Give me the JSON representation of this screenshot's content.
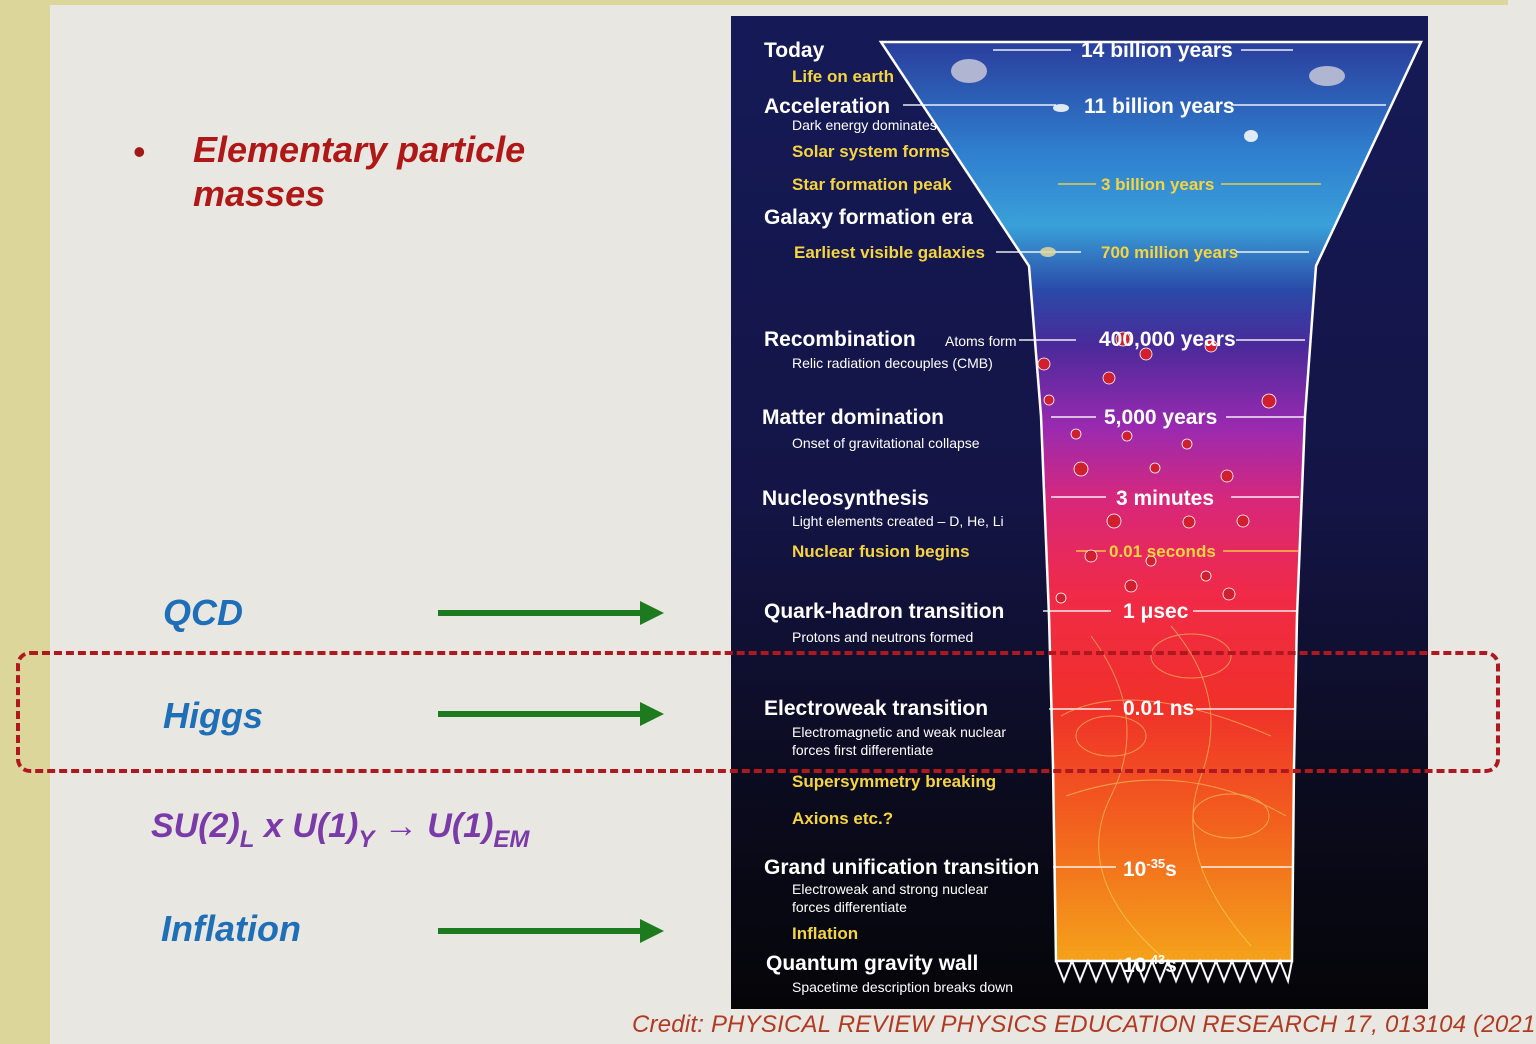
{
  "bullet": {
    "symbol": "•",
    "text": "Elementary particle masses"
  },
  "labels": {
    "qcd": "QCD",
    "higgs": "Higgs",
    "symmetry": {
      "part1": "SU(2)",
      "sub1": "L",
      "part2": " x U(1)",
      "sub2": "Y",
      "arrow": " → U(1)",
      "sub3": "EM"
    },
    "inflation": "Inflation"
  },
  "diagram": {
    "events": {
      "today": "Today",
      "life_on_earth": "Life on earth",
      "acceleration": "Acceleration",
      "dark_energy": "Dark energy dominates",
      "solar_system": "Solar system forms",
      "star_formation": "Star formation peak",
      "galaxy_formation": "Galaxy formation era",
      "earliest_galaxies": "Earliest visible galaxies",
      "recombination": "Recombination",
      "atoms_form": "Atoms form",
      "relic_radiation": "Relic radiation decouples (CMB)",
      "matter_domination": "Matter domination",
      "gravitational_collapse": "Onset of gravitational collapse",
      "nucleosynthesis": "Nucleosynthesis",
      "light_elements": "Light elements created – D, He, Li",
      "nuclear_fusion": "Nuclear fusion begins",
      "quark_hadron": "Quark-hadron transition",
      "protons_neutrons": "Protons and neutrons formed",
      "electroweak": "Electroweak transition",
      "em_weak_1": "Electromagnetic and weak nuclear",
      "em_weak_2": "forces first differentiate",
      "supersymmetry": "Supersymmetry breaking",
      "axions": "Axions etc.?",
      "grand_unification": "Grand unification transition",
      "gut_desc_1": "Electroweak and strong nuclear",
      "gut_desc_2": "forces differentiate",
      "inflation": "Inflation",
      "quantum_gravity": "Quantum gravity wall",
      "spacetime": "Spacetime description breaks down"
    },
    "times": {
      "t14b": "14 billion years",
      "t11b": "11 billion years",
      "t3b": "3 billion years",
      "t700m": "700 million years",
      "t400k": "400,000 years",
      "t5000": "5,000 years",
      "t3min": "3 minutes",
      "t001s": "0.01 seconds",
      "t1us": "1 μsec",
      "t001ns": "0.01 ns",
      "t1e35": "10",
      "t1e35_exp": "-35",
      "t1e35_unit": "s",
      "t1e43": "10",
      "t1e43_exp": "-43",
      "t1e43_unit": "s"
    }
  },
  "credit": "Credit: PHYSICAL REVIEW PHYSICS EDUCATION RESEARCH 17, 013104 (2021",
  "colors": {
    "sidebar": "#ddd69a",
    "bullet_text": "#b01818",
    "label_blue": "#1f6fb8",
    "label_purple": "#7a3aa8",
    "arrow_green": "#1e7a1e",
    "dashed_box": "#b01820",
    "credit": "#b03a22"
  }
}
